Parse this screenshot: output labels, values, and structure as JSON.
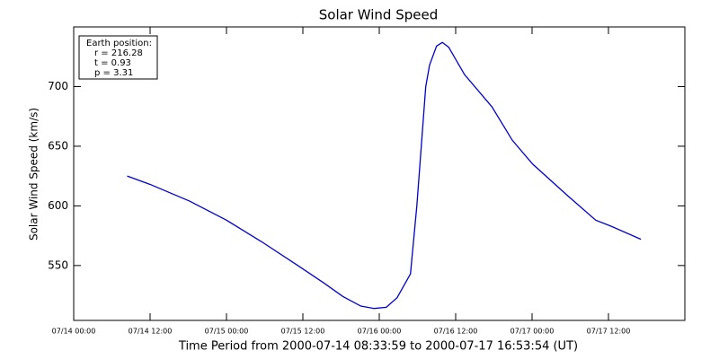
{
  "chart_data": {
    "type": "line",
    "title": "Solar Wind Speed",
    "xlabel": "Time Period from 2000-07-14 08:33:59 to 2000-07-17 16:53:54 (UT)",
    "ylabel": "Solar Wind Speed (km/s)",
    "annotation": [
      "Earth position:",
      "r = 216.28",
      "t = 0.93",
      "p = 3.31"
    ],
    "x": [
      8.4,
      12,
      18.2,
      24,
      29.5,
      35.2,
      39.4,
      42.3,
      45.1,
      47.2,
      49.1,
      50.8,
      52.9,
      53.9,
      54.6,
      55.3,
      55.9,
      57.0,
      57.9,
      58.9,
      61.4,
      65.7,
      68.9,
      72.1,
      77.7,
      82,
      84.4,
      89.1
    ],
    "series": [
      {
        "name": "Solar Wind Speed",
        "color": "#0000cc",
        "values": [
          625,
          618,
          604,
          588,
          570,
          550,
          535,
          524,
          516,
          514,
          515,
          523,
          543,
          600,
          650,
          700,
          718,
          734,
          737,
          733,
          710,
          683,
          655,
          635,
          608,
          588,
          583,
          572
        ]
      }
    ],
    "xlim": [
      0,
      96
    ],
    "xticks": [
      {
        "value": 0,
        "label": "07/14 00:00"
      },
      {
        "value": 12,
        "label": "07/14 12:00"
      },
      {
        "value": 24,
        "label": "07/15 00:00"
      },
      {
        "value": 36,
        "label": "07/15 12:00"
      },
      {
        "value": 48,
        "label": "07/16 00:00"
      },
      {
        "value": 60,
        "label": "07/16 12:00"
      },
      {
        "value": 72,
        "label": "07/17 00:00"
      },
      {
        "value": 84,
        "label": "07/17 12:00"
      }
    ],
    "ylim": [
      504,
      750
    ],
    "yticks": [
      550,
      600,
      650,
      700
    ]
  }
}
